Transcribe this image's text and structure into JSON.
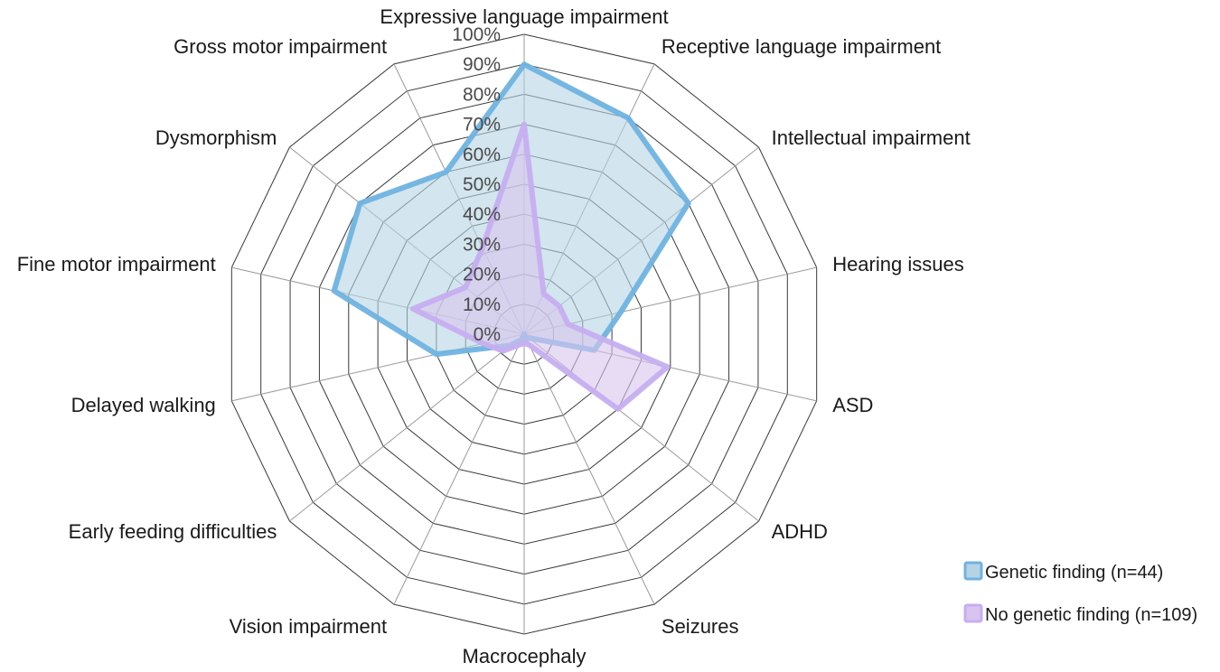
{
  "chart_data": {
    "type": "radar",
    "axes": [
      "Expressive language impairment",
      "Receptive language impairment",
      "Intellectual impairment",
      "Hearing issues",
      "ASD",
      "ADHD",
      "Seizures",
      "Macrocephaly",
      "Vision impairment",
      "Early feeding difficulties",
      "Delayed walking",
      "Fine motor impairment",
      "Dysmorphism",
      "Gross motor impairment"
    ],
    "tick_labels": [
      "0%",
      "10%",
      "20%",
      "30%",
      "40%",
      "50%",
      "60%",
      "70%",
      "80%",
      "90%",
      "100%"
    ],
    "rlim": [
      0,
      100
    ],
    "grid": true,
    "legend_position": "bottom-right",
    "series": [
      {
        "name": "Genetic finding (n=44)",
        "color": "#6fb3e0",
        "fill": "#b5d3e3",
        "values": [
          90,
          80,
          70,
          33,
          24,
          2,
          2,
          0,
          2,
          6,
          30,
          65,
          70,
          60
        ]
      },
      {
        "name": "No genetic finding (n=109)",
        "color": "#c6aef0",
        "fill": "#d8c4ef",
        "values": [
          70,
          15,
          15,
          15,
          49,
          40,
          4,
          3,
          4,
          9,
          14,
          38,
          25,
          32
        ]
      }
    ]
  }
}
